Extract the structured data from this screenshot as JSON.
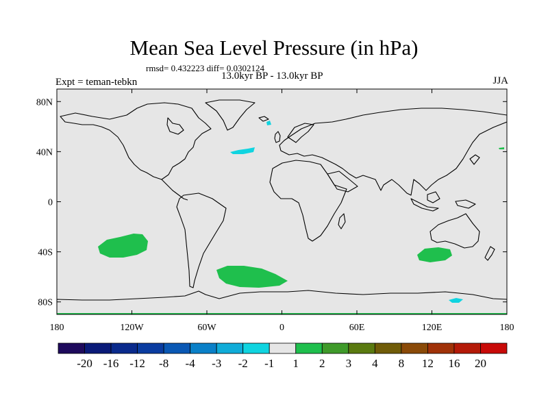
{
  "title": "Mean Sea Level Pressure (in hPa)",
  "stats": "rmsd= 0.432223 diff= 0.0302124",
  "period": "13.0kyr BP - 13.0kyr BP",
  "experiment": "Expt = teman-tebkn",
  "season": "JJA",
  "colors": {
    "background": "#e6e6e6",
    "positive_fill": "#1fbf4d",
    "negative_fill": "#10d4e0",
    "coastline": "#000000"
  },
  "lat_ticks": [
    {
      "label": "80N",
      "lat": 80
    },
    {
      "label": "40N",
      "lat": 40
    },
    {
      "label": "0",
      "lat": 0
    },
    {
      "label": "40S",
      "lat": -40
    },
    {
      "label": "80S",
      "lat": -80
    }
  ],
  "lon_ticks": [
    {
      "label": "180",
      "lon": -180
    },
    {
      "label": "120W",
      "lon": -120
    },
    {
      "label": "60W",
      "lon": -60
    },
    {
      "label": "0",
      "lon": 0
    },
    {
      "label": "60E",
      "lon": 60
    },
    {
      "label": "120E",
      "lon": 120
    },
    {
      "label": "180",
      "lon": 180
    }
  ],
  "colorbar": {
    "colors": [
      "#1e0a5c",
      "#0a1a78",
      "#0a2a8c",
      "#0a3ca0",
      "#0a58b4",
      "#0a80c8",
      "#10acd8",
      "#10d4e0",
      "#e6e6e6",
      "#1fbf4d",
      "#3f9a2a",
      "#5a7a10",
      "#705c08",
      "#8a4a08",
      "#a03208",
      "#b41a08",
      "#c80a08"
    ],
    "labels": [
      "-20",
      "-16",
      "-12",
      "-8",
      "-4",
      "-3",
      "-2",
      "-1",
      "1",
      "2",
      "3",
      "4",
      "8",
      "12",
      "16",
      "20"
    ]
  },
  "anomalies": [
    {
      "sign": "positive",
      "region": "South Pacific",
      "lon": -112,
      "lat": -35
    },
    {
      "sign": "positive",
      "region": "South Atlantic",
      "lon": -23,
      "lat": -58
    },
    {
      "sign": "positive",
      "region": "South Indian Ocean",
      "lon": 124,
      "lat": -40
    },
    {
      "sign": "negative",
      "region": "North Atlantic",
      "lon": -28,
      "lat": 41
    },
    {
      "sign": "negative",
      "region": "Iceland",
      "lon": -12,
      "lat": 62
    },
    {
      "sign": "negative",
      "region": "Antarctic coast",
      "lon": 143,
      "lat": -76
    }
  ]
}
